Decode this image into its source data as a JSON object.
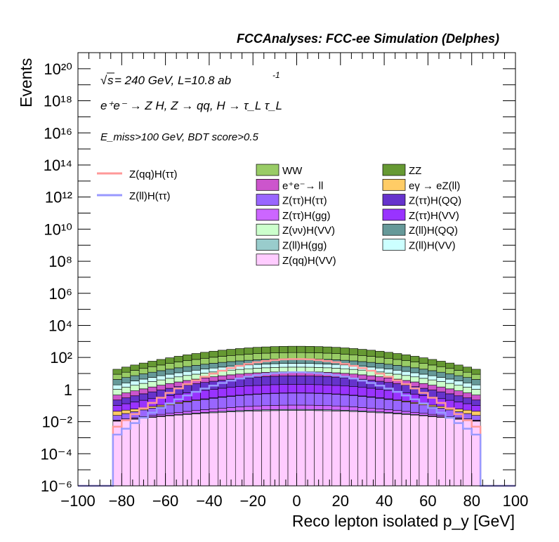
{
  "chart_data": {
    "type": "area",
    "header": "FCCAnalyses: FCC-ee Simulation (Delphes)",
    "annotations": [
      "√s = 240 GeV, L=10.8 ab⁻¹",
      "e⁺e⁻ → Z H, Z → qq, H → τ_L τ_L",
      "E_miss>100 GeV, BDT score>0.5"
    ],
    "sqrt_s_label": "s",
    "line1_rest": " = 240 GeV, L=10.8 ab",
    "line1_exp": "-1",
    "process_label": "e⁺e⁻ → Z H, Z → qq, H → τ_L τ_L",
    "selection_label": "E_miss>100 GeV, BDT score>0.5",
    "xlabel": "Reco lepton isolated p_y [GeV]",
    "ylabel": "Events",
    "xlim": [
      -100,
      100
    ],
    "ylim_log10": [
      -6,
      21
    ],
    "log_y": true,
    "x_ticks": [
      "−100",
      "−80",
      "−60",
      "−40",
      "−20",
      "0",
      "20",
      "40",
      "60",
      "80",
      "100"
    ],
    "y_ticks": [
      "10⁻⁶",
      "10⁻⁴",
      "10⁻²",
      "1",
      "10²",
      "10⁴",
      "10⁶",
      "10⁸",
      "10¹⁰",
      "10¹²",
      "10¹⁴",
      "10¹⁶",
      "10¹⁸",
      "10²⁰"
    ],
    "bin_width": 4,
    "bin_range": [
      -84,
      84
    ],
    "stack_profile_note": "values are approximate per-bin events, read from log axis",
    "stack": [
      {
        "name": "Z(qq)H(VV)",
        "color": "#ffccff",
        "peak": 0.05,
        "edge": 0.01
      },
      {
        "name": "Z(ll)H(gg)",
        "color": "#99cccc",
        "peak": 0.008,
        "edge": 0.0005
      },
      {
        "name": "Z(ττ)H(gg)",
        "color": "#cc66ff",
        "peak": 0.05,
        "edge": 0.001
      },
      {
        "name": "Z(ττ)H(ττ)",
        "color": "#9966ff",
        "peak": 0.5,
        "edge": 0.01
      },
      {
        "name": "eγ → eZ(ll)",
        "color": "#ffcc66",
        "peak": 0.02,
        "edge": 0.02
      },
      {
        "name": "Z(ττ)H(VV)",
        "color": "#9933ff",
        "peak": 1.5,
        "edge": 0.05
      },
      {
        "name": "Z(ττ)H(QQ)",
        "color": "#6633cc",
        "peak": 5,
        "edge": 0.1
      },
      {
        "name": "e⁺e⁻→ ll",
        "color": "#cc55cc",
        "peak": 6,
        "edge": 0.2
      },
      {
        "name": "Z(νν)H(VV)",
        "color": "#ccffcc",
        "peak": 12,
        "edge": 0.5
      },
      {
        "name": "Z(ll)H(VV)",
        "color": "#ccffff",
        "peak": 18,
        "edge": 0.8
      },
      {
        "name": "Z(ll)H(QQ)",
        "color": "#669999",
        "peak": 40,
        "edge": 2
      },
      {
        "name": "WW",
        "color": "#99cc66",
        "peak": 120,
        "edge": 4
      },
      {
        "name": "ZZ",
        "color": "#669933",
        "peak": 300,
        "edge": 8
      }
    ],
    "legend_stack_order": [
      "WW",
      "ZZ",
      "e⁺e⁻→ ll",
      "eγ → eZ(ll)",
      "Z(ττ)H(ττ)",
      "Z(ττ)H(QQ)",
      "Z(ττ)H(gg)",
      "Z(ττ)H(VV)",
      "Z(νν)H(VV)",
      "Z(ll)H(QQ)",
      "Z(ll)H(gg)",
      "Z(ll)H(VV)",
      "Z(qq)H(VV)"
    ],
    "signals": [
      {
        "name": "Z(qq)H(ττ)",
        "color": "#ff9999",
        "peak": 80,
        "edge": 0.003
      },
      {
        "name": "Z(ll)H(ττ)",
        "color": "#9999ff",
        "peak": 12,
        "edge": 0.001
      }
    ],
    "legend_placement": "inside, upper half"
  }
}
